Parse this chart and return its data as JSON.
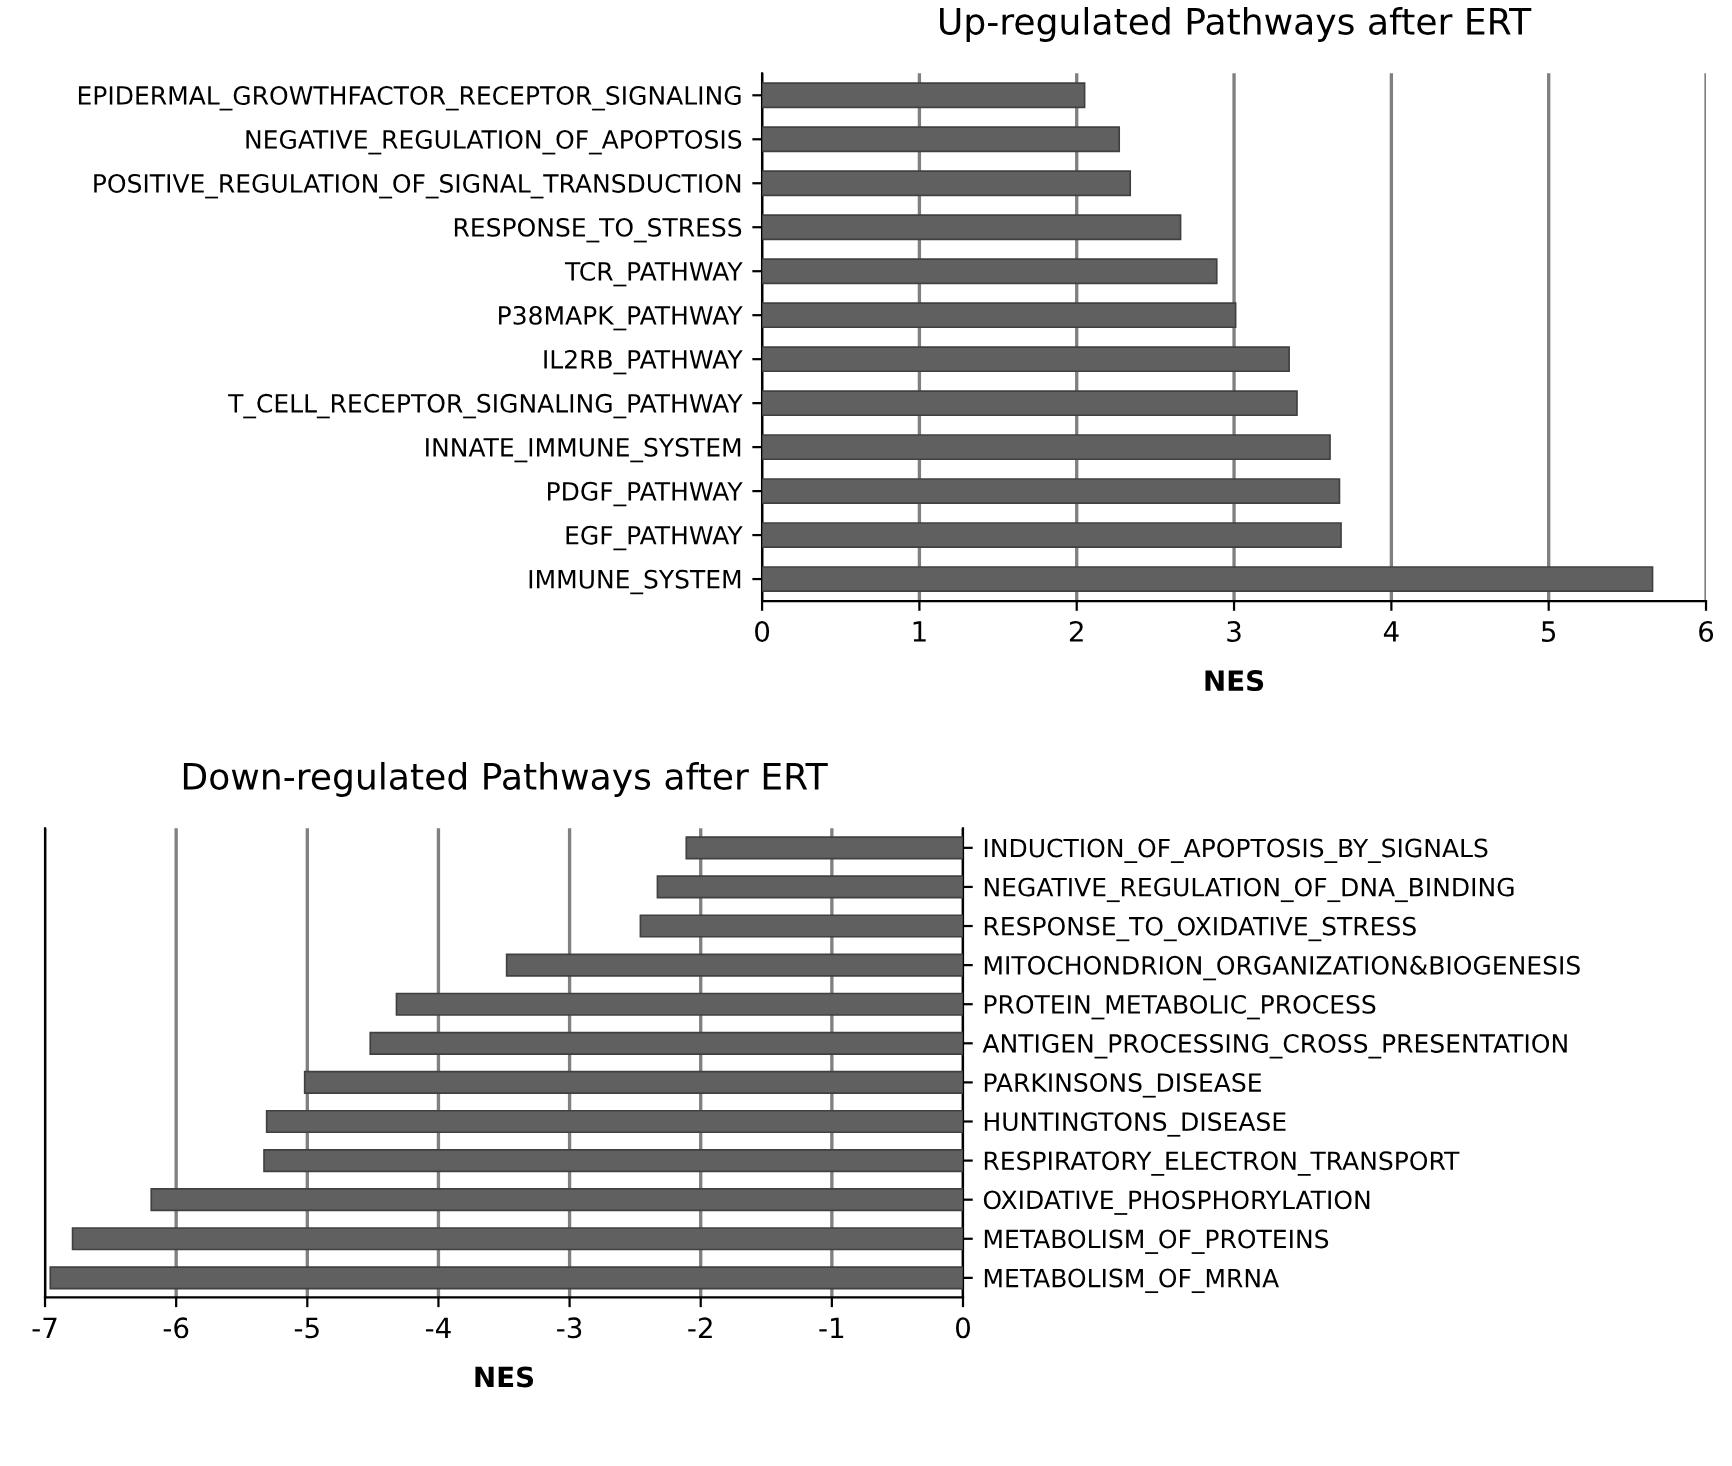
{
  "chart_data": [
    {
      "type": "bar",
      "orientation": "horizontal",
      "title": "Up-regulated Pathways after ERT",
      "xlabel": "NES",
      "categories": [
        "EPIDERMAL_GROWTHFACTOR_RECEPTOR_SIGNALING",
        "NEGATIVE_REGULATION_OF_APOPTOSIS",
        "POSITIVE_REGULATION_OF_SIGNAL_TRANSDUCTION",
        "RESPONSE_TO_STRESS",
        "TCR_PATHWAY",
        "P38MAPK_PATHWAY",
        "IL2RB_PATHWAY",
        "T_CELL_RECEPTOR_SIGNALING_PATHWAY",
        "INNATE_IMMUNE_SYSTEM",
        "PDGF_PATHWAY",
        "EGF_PATHWAY",
        "IMMUNE_SYSTEM"
      ],
      "values": [
        2.05,
        2.27,
        2.34,
        2.66,
        2.89,
        3.01,
        3.35,
        3.4,
        3.61,
        3.67,
        3.68,
        5.66
      ],
      "color": "#606060",
      "xlim": [
        0,
        6
      ],
      "xticks": [
        0,
        1,
        2,
        3,
        4,
        5,
        6
      ],
      "grid": "x"
    },
    {
      "type": "bar",
      "orientation": "horizontal",
      "title": "Down-regulated Pathways after ERT",
      "xlabel": "NES",
      "categories": [
        "INDUCTION_OF_APOPTOSIS_BY_SIGNALS",
        "NEGATIVE_REGULATION_OF_DNA_BINDING",
        "RESPONSE_TO_OXIDATIVE_STRESS",
        "MITOCHONDRION_ORGANIZATION&BIOGENESIS",
        "PROTEIN_METABOLIC_PROCESS",
        "ANTIGEN_PROCESSING_CROSS_PRESENTATION",
        "PARKINSONS_DISEASE",
        "HUNTINGTONS_DISEASE",
        "RESPIRATORY_ELECTRON_TRANSPORT",
        "OXIDATIVE_PHOSPHORYLATION",
        "METABOLISM_OF_PROTEINS",
        "METABOLISM_OF_MRNA"
      ],
      "values": [
        -2.11,
        -2.33,
        -2.46,
        -3.48,
        -4.32,
        -4.52,
        -5.02,
        -5.31,
        -5.33,
        -6.19,
        -6.79,
        -6.96
      ],
      "color": "#606060",
      "xlim": [
        -7,
        0
      ],
      "xticks": [
        -7,
        -6,
        -5,
        -4,
        -3,
        -2,
        -1,
        0
      ],
      "grid": "x"
    }
  ]
}
